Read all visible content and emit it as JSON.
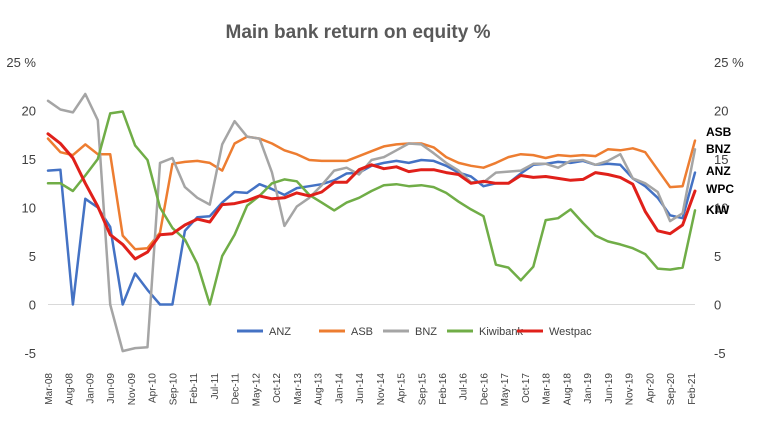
{
  "chart_data": {
    "type": "line",
    "title": "Main bank return on equity %",
    "xlabel": "",
    "ylabel": "",
    "ylim": [
      -5,
      25
    ],
    "y_ticks": [
      "-5",
      "0",
      "5",
      "10",
      "15",
      "20",
      "25 %"
    ],
    "y_ticks_right": [
      "-5",
      "0",
      "5",
      "10",
      "15",
      "20",
      "25 %"
    ],
    "grid": false,
    "legend_position": "bottom",
    "x_tick_labels": [
      "Mar-08",
      "Aug-08",
      "Jan-09",
      "Jun-09",
      "Nov-09",
      "Apr-10",
      "Sep-10",
      "Feb-11",
      "Jul-11",
      "Dec-11",
      "May-12",
      "Oct-12",
      "Mar-13",
      "Aug-13",
      "Jan-14",
      "Jun-14",
      "Nov-14",
      "Apr-15",
      "Sep-15",
      "Feb-16",
      "Jul-16",
      "Dec-16",
      "May-17",
      "Oct-17",
      "Mar-18",
      "Aug-18",
      "Jan-19",
      "Jun-19",
      "Nov-19",
      "Apr-20",
      "Sep-20",
      "Feb-21"
    ],
    "x": [
      "Mar-08",
      "Jun-08",
      "Sep-08",
      "Dec-08",
      "Mar-09",
      "Jun-09",
      "Sep-09",
      "Dec-09",
      "Mar-10",
      "Jun-10",
      "Sep-10",
      "Dec-10",
      "Mar-11",
      "Jun-11",
      "Sep-11",
      "Dec-11",
      "Mar-12",
      "Jun-12",
      "Sep-12",
      "Dec-12",
      "Mar-13",
      "Jun-13",
      "Sep-13",
      "Dec-13",
      "Mar-14",
      "Jun-14",
      "Sep-14",
      "Dec-14",
      "Mar-15",
      "Jun-15",
      "Sep-15",
      "Dec-15",
      "Mar-16",
      "Jun-16",
      "Sep-16",
      "Dec-16",
      "Mar-17",
      "Jun-17",
      "Sep-17",
      "Dec-17",
      "Mar-18",
      "Jun-18",
      "Sep-18",
      "Dec-18",
      "Mar-19",
      "Jun-19",
      "Sep-19",
      "Dec-19",
      "Mar-20",
      "Jun-20",
      "Sep-20",
      "Dec-20",
      "Mar-21"
    ],
    "series": [
      {
        "name": "ANZ",
        "color": "#4472C4",
        "values": [
          13.8,
          13.9,
          0,
          10.9,
          10.0,
          8.0,
          0,
          3.2,
          1.5,
          0,
          0,
          7.6,
          9.0,
          9.1,
          10.5,
          11.6,
          11.5,
          12.4,
          11.9,
          11.3,
          12.0,
          12.2,
          12.4,
          12.8,
          13.5,
          13.6,
          14.3,
          14.6,
          14.8,
          14.6,
          14.9,
          14.8,
          14.3,
          13.6,
          13.2,
          12.2,
          12.5,
          12.5,
          13.5,
          14.4,
          14.5,
          14.7,
          14.6,
          14.8,
          14.4,
          14.5,
          14.4,
          13.0,
          12.2,
          11.0,
          9.2,
          8.9,
          13.6
        ]
      },
      {
        "name": "ASB",
        "color": "#ED7D31",
        "values": [
          17.1,
          15.7,
          15.4,
          16.5,
          15.5,
          15.5,
          7.1,
          5.7,
          5.8,
          7.4,
          14.5,
          14.7,
          14.8,
          14.6,
          13.8,
          16.6,
          17.3,
          17.1,
          16.6,
          15.9,
          15.5,
          14.9,
          14.8,
          14.8,
          14.8,
          15.3,
          15.8,
          16.3,
          16.5,
          16.6,
          16.6,
          16.2,
          15.2,
          14.6,
          14.3,
          14.1,
          14.6,
          15.2,
          15.5,
          15.4,
          15.1,
          15.4,
          15.3,
          15.4,
          15.3,
          16.0,
          15.9,
          16.1,
          15.7,
          13.9,
          12.1,
          12.2,
          16.9
        ]
      },
      {
        "name": "BNZ",
        "color": "#A5A5A5",
        "values": [
          21.0,
          20.1,
          19.8,
          21.7,
          19.0,
          0,
          -4.8,
          -4.5,
          -4.4,
          14.6,
          15.1,
          12.1,
          11.0,
          10.3,
          16.5,
          18.9,
          17.3,
          17.1,
          13.6,
          8.1,
          10.1,
          11.0,
          12.3,
          13.8,
          14.1,
          13.4,
          14.9,
          15.2,
          15.9,
          16.6,
          16.5,
          15.6,
          14.6,
          13.8,
          12.6,
          12.6,
          13.6,
          13.7,
          13.8,
          14.5,
          14.5,
          14.1,
          14.8,
          14.9,
          14.4,
          14.8,
          15.5,
          13.0,
          12.5,
          11.6,
          8.6,
          9.4,
          16.0
        ]
      },
      {
        "name": "Kiwibank",
        "color": "#70AD47",
        "values": [
          12.5,
          12.5,
          11.7,
          13.3,
          15.0,
          19.7,
          19.9,
          16.4,
          14.9,
          10.0,
          7.9,
          6.7,
          4.2,
          0,
          5.0,
          7.2,
          10.2,
          11.2,
          12.5,
          12.9,
          12.7,
          11.3,
          10.5,
          9.7,
          10.5,
          11.0,
          11.7,
          12.3,
          12.4,
          12.2,
          12.3,
          12.1,
          11.5,
          10.6,
          9.8,
          9.1,
          4.1,
          3.8,
          2.5,
          3.9,
          8.7,
          8.9,
          9.8,
          8.4,
          7.1,
          6.5,
          6.2,
          5.8,
          5.2,
          3.7,
          3.6,
          3.8,
          9.7
        ]
      },
      {
        "name": "Westpac",
        "color": "#E0201A",
        "values": [
          17.6,
          16.6,
          15.1,
          12.5,
          10.1,
          7.2,
          6.2,
          4.7,
          5.4,
          7.2,
          7.3,
          8.2,
          8.8,
          8.5,
          10.3,
          10.4,
          10.7,
          11.2,
          10.9,
          11.0,
          11.5,
          11.2,
          11.6,
          12.6,
          12.6,
          13.9,
          14.4,
          14.0,
          14.2,
          13.7,
          13.9,
          13.9,
          13.6,
          13.4,
          12.5,
          12.7,
          12.5,
          12.5,
          13.3,
          13.1,
          13.2,
          13.0,
          12.8,
          12.9,
          13.6,
          13.4,
          13.1,
          12.4,
          9.6,
          7.6,
          7.3,
          8.2,
          11.7
        ]
      }
    ],
    "end_labels": [
      "ASB",
      "BNZ",
      "ANZ",
      "WPC",
      "KIW"
    ]
  }
}
